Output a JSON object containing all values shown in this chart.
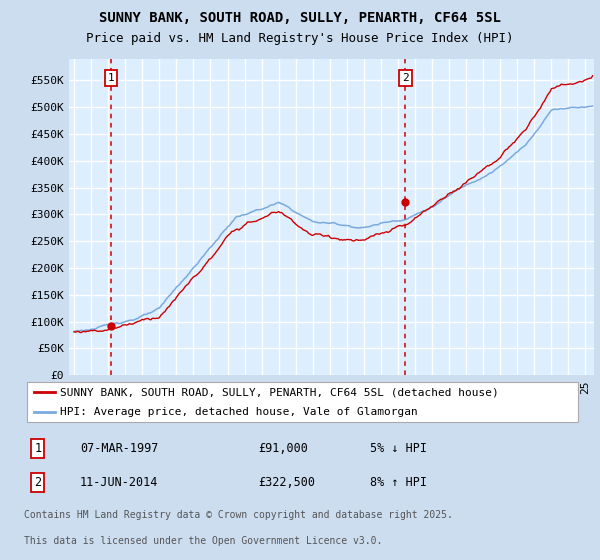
{
  "title_line1": "SUNNY BANK, SOUTH ROAD, SULLY, PENARTH, CF64 5SL",
  "title_line2": "Price paid vs. HM Land Registry's House Price Index (HPI)",
  "ylabel_ticks": [
    "£0",
    "£50K",
    "£100K",
    "£150K",
    "£200K",
    "£250K",
    "£300K",
    "£350K",
    "£400K",
    "£450K",
    "£500K",
    "£550K"
  ],
  "ytick_values": [
    0,
    50000,
    100000,
    150000,
    200000,
    250000,
    300000,
    350000,
    400000,
    450000,
    500000,
    550000
  ],
  "ylim": [
    0,
    590000
  ],
  "xlim_start": 1994.7,
  "xlim_end": 2025.5,
  "sale1_year": 1997.18,
  "sale1_price": 91000,
  "sale2_year": 2014.44,
  "sale2_price": 322500,
  "legend_line1": "SUNNY BANK, SOUTH ROAD, SULLY, PENARTH, CF64 5SL (detached house)",
  "legend_line2": "HPI: Average price, detached house, Vale of Glamorgan",
  "table_row1": [
    "1",
    "07-MAR-1997",
    "£91,000",
    "5% ↓ HPI"
  ],
  "table_row2": [
    "2",
    "11-JUN-2014",
    "£322,500",
    "8% ↑ HPI"
  ],
  "footnote1": "Contains HM Land Registry data © Crown copyright and database right 2025.",
  "footnote2": "This data is licensed under the Open Government Licence v3.0.",
  "line_color_red": "#cc0000",
  "line_color_blue": "#7aaadd",
  "bg_color": "#ccddf0",
  "plot_bg": "#ddeeff",
  "grid_color": "#ffffff",
  "vline_color": "#cc0000",
  "box_color": "#cc0000",
  "title_fontsize": 10,
  "subtitle_fontsize": 9,
  "tick_fontsize": 8,
  "legend_fontsize": 8,
  "table_fontsize": 8.5,
  "footnote_fontsize": 7
}
